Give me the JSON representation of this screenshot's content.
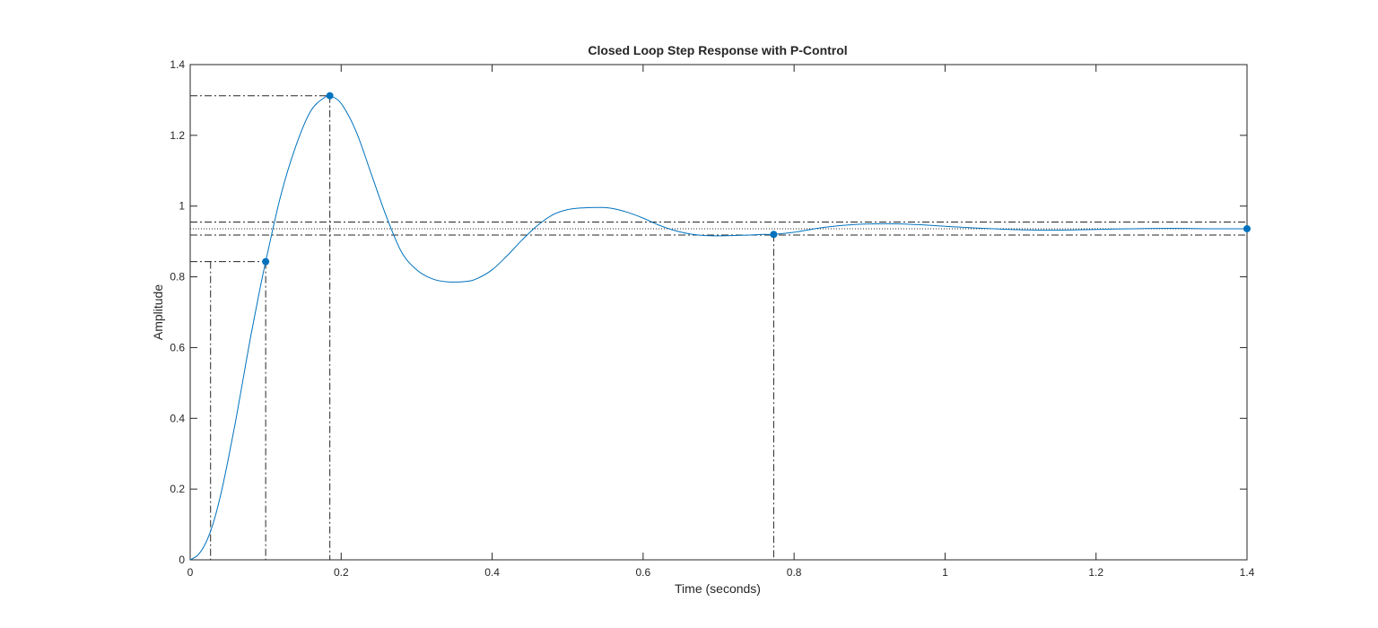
{
  "chart_data": {
    "type": "line",
    "title": "Closed Loop Step Response with P-Control",
    "xlabel": "Time (seconds)",
    "ylabel": "Amplitude",
    "xlim": [
      0,
      1.4
    ],
    "ylim": [
      0,
      1.4
    ],
    "xticks": [
      "0",
      "0.2",
      "0.4",
      "0.6",
      "0.8",
      "1",
      "1.2",
      "1.4"
    ],
    "yticks": [
      "0",
      "0.2",
      "0.4",
      "0.6",
      "0.8",
      "1",
      "1.2",
      "1.4"
    ],
    "grid": false,
    "series_color": "#0072BD",
    "series": [
      {
        "x": [
          0,
          0.01,
          0.02,
          0.03,
          0.04,
          0.05,
          0.06,
          0.07,
          0.08,
          0.09,
          0.1,
          0.12,
          0.14,
          0.16,
          0.18,
          0.185,
          0.2,
          0.22,
          0.24,
          0.26,
          0.28,
          0.3,
          0.32,
          0.34,
          0.365,
          0.38,
          0.4,
          0.42,
          0.44,
          0.46,
          0.48,
          0.5,
          0.52,
          0.545,
          0.56,
          0.58,
          0.6,
          0.62,
          0.64,
          0.66,
          0.68,
          0.7,
          0.72,
          0.74,
          0.76,
          0.773,
          0.8,
          0.84,
          0.88,
          0.92,
          0.96,
          1.0,
          1.05,
          1.1,
          1.15,
          1.2,
          1.25,
          1.3,
          1.35,
          1.4
        ],
        "y": [
          0,
          0.013,
          0.045,
          0.1,
          0.18,
          0.28,
          0.39,
          0.51,
          0.63,
          0.74,
          0.843,
          1.03,
          1.17,
          1.27,
          1.31,
          1.312,
          1.29,
          1.21,
          1.09,
          0.97,
          0.87,
          0.82,
          0.795,
          0.786,
          0.787,
          0.795,
          0.82,
          0.86,
          0.905,
          0.945,
          0.975,
          0.99,
          0.995,
          0.996,
          0.993,
          0.982,
          0.966,
          0.947,
          0.932,
          0.922,
          0.917,
          0.916,
          0.917,
          0.918,
          0.92,
          0.92,
          0.926,
          0.94,
          0.948,
          0.95,
          0.948,
          0.943,
          0.937,
          0.933,
          0.932,
          0.934,
          0.936,
          0.937,
          0.936,
          0.936
        ]
      }
    ],
    "characteristic_points": [
      {
        "x": 0.1,
        "y": 0.843
      },
      {
        "x": 0.185,
        "y": 1.312
      },
      {
        "x": 0.773,
        "y": 0.92
      },
      {
        "x": 1.4,
        "y": 0.936
      }
    ],
    "annotations": {
      "rise_time_start_x": 0.027,
      "rise_level_y": 0.843,
      "settling_band": [
        0.918,
        0.955
      ],
      "steady_state_y": 0.936
    }
  }
}
